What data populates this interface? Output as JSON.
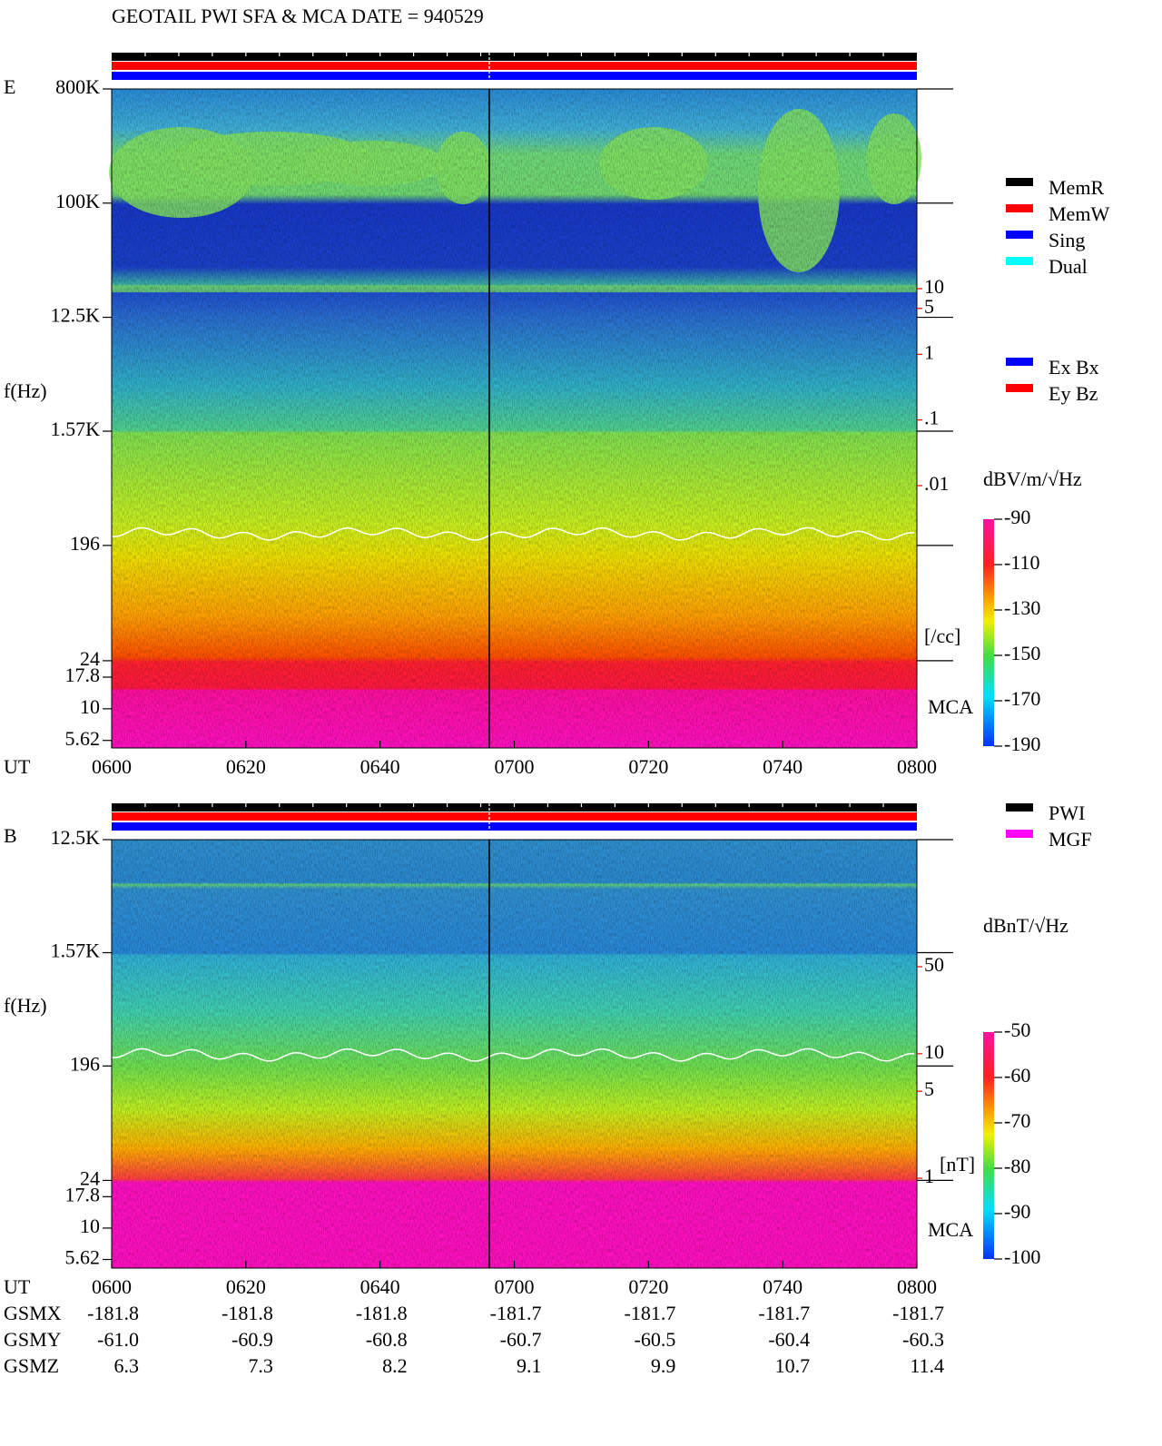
{
  "title": "GEOTAIL  PWI SFA & MCA   DATE = 940529",
  "chart_data": [
    {
      "type": "spectrogram",
      "panel": "E",
      "ylabel": "f(Hz)",
      "xlabel": "UT",
      "channel_label": "MCA",
      "log_y": true,
      "ylim": [
        4.9,
        800000
      ],
      "yticks": [
        {
          "value": 800000,
          "label": "800K"
        },
        {
          "value": 100000,
          "label": "100K"
        },
        {
          "value": 12500,
          "label": "12.5K"
        },
        {
          "value": 1570,
          "label": "1.57K"
        },
        196,
        24,
        17.8,
        10,
        5.62
      ],
      "xlim": [
        360,
        480
      ],
      "xticks": [
        {
          "value": 360,
          "label": "0600"
        },
        {
          "value": 380,
          "label": "0620"
        },
        {
          "value": 400,
          "label": "0640"
        },
        {
          "value": 420,
          "label": "0700"
        },
        {
          "value": 440,
          "label": "0720"
        },
        {
          "value": 460,
          "label": "0740"
        },
        {
          "value": 480,
          "label": "0800"
        }
      ],
      "y2label": "[/cc]",
      "y2lim": [
        0.01,
        10
      ],
      "y2color": "#ff0000",
      "y2ticks": [
        10,
        5,
        1,
        {
          "value": 0.1,
          "label": ".1"
        },
        {
          "value": 0.01,
          "label": ".01"
        }
      ],
      "colorbar": {
        "label": "dBV/m/√Hz",
        "lim": [
          -190,
          -90
        ],
        "ticks": [
          -90,
          -110,
          -130,
          -150,
          -170,
          -190
        ]
      },
      "legend": [
        {
          "name": "MemR",
          "color": "#000000"
        },
        {
          "name": "MemW",
          "color": "#ff0000"
        },
        {
          "name": "Sing",
          "color": "#0000ff"
        },
        {
          "name": "Dual",
          "color": "#00ffff"
        }
      ],
      "component_legend": [
        {
          "name": "Ex Bx",
          "color": "#0000ff"
        },
        {
          "name": "Ey Bz",
          "color": "#ff0000"
        }
      ]
    },
    {
      "type": "spectrogram",
      "panel": "B",
      "ylabel": "f(Hz)",
      "xlabel": "UT",
      "channel_label": "MCA",
      "log_y": true,
      "ylim": [
        4.8,
        12500
      ],
      "yticks": [
        {
          "value": 12500,
          "label": "12.5K"
        },
        {
          "value": 1570,
          "label": "1.57K"
        },
        196,
        24,
        17.8,
        10,
        5.62
      ],
      "xlim": [
        360,
        480
      ],
      "xticks": [
        {
          "value": 360,
          "label": "0600"
        },
        {
          "value": 380,
          "label": "0620"
        },
        {
          "value": 400,
          "label": "0640"
        },
        {
          "value": 420,
          "label": "0700"
        },
        {
          "value": 440,
          "label": "0720"
        },
        {
          "value": 460,
          "label": "0740"
        },
        {
          "value": 480,
          "label": "0800"
        }
      ],
      "y2label": "[nT]",
      "y2lim": [
        1,
        50
      ],
      "y2color": "#ff0000",
      "y2ticks": [
        50,
        10,
        5,
        1
      ],
      "colorbar": {
        "label": "dBnT/√Hz",
        "lim": [
          -100,
          -50
        ],
        "ticks": [
          -50,
          -60,
          -70,
          -80,
          -90,
          -100
        ]
      },
      "legend": [
        {
          "name": "PWI",
          "color": "#000000"
        },
        {
          "name": "MGF",
          "color": "#ff00ff"
        }
      ]
    }
  ],
  "ephemeris": {
    "rows": [
      {
        "name": "GSMX",
        "values": [
          "-181.8",
          "-181.8",
          "-181.8",
          "-181.7",
          "-181.7",
          "-181.7",
          "-181.7"
        ]
      },
      {
        "name": "GSMY",
        "values": [
          "-61.0",
          "-60.9",
          "-60.8",
          "-60.7",
          "-60.5",
          "-60.4",
          "-60.3"
        ]
      },
      {
        "name": "GSMZ",
        "values": [
          "6.3",
          "7.3",
          "8.2",
          "9.1",
          "9.9",
          "10.7",
          "11.4"
        ]
      }
    ]
  }
}
